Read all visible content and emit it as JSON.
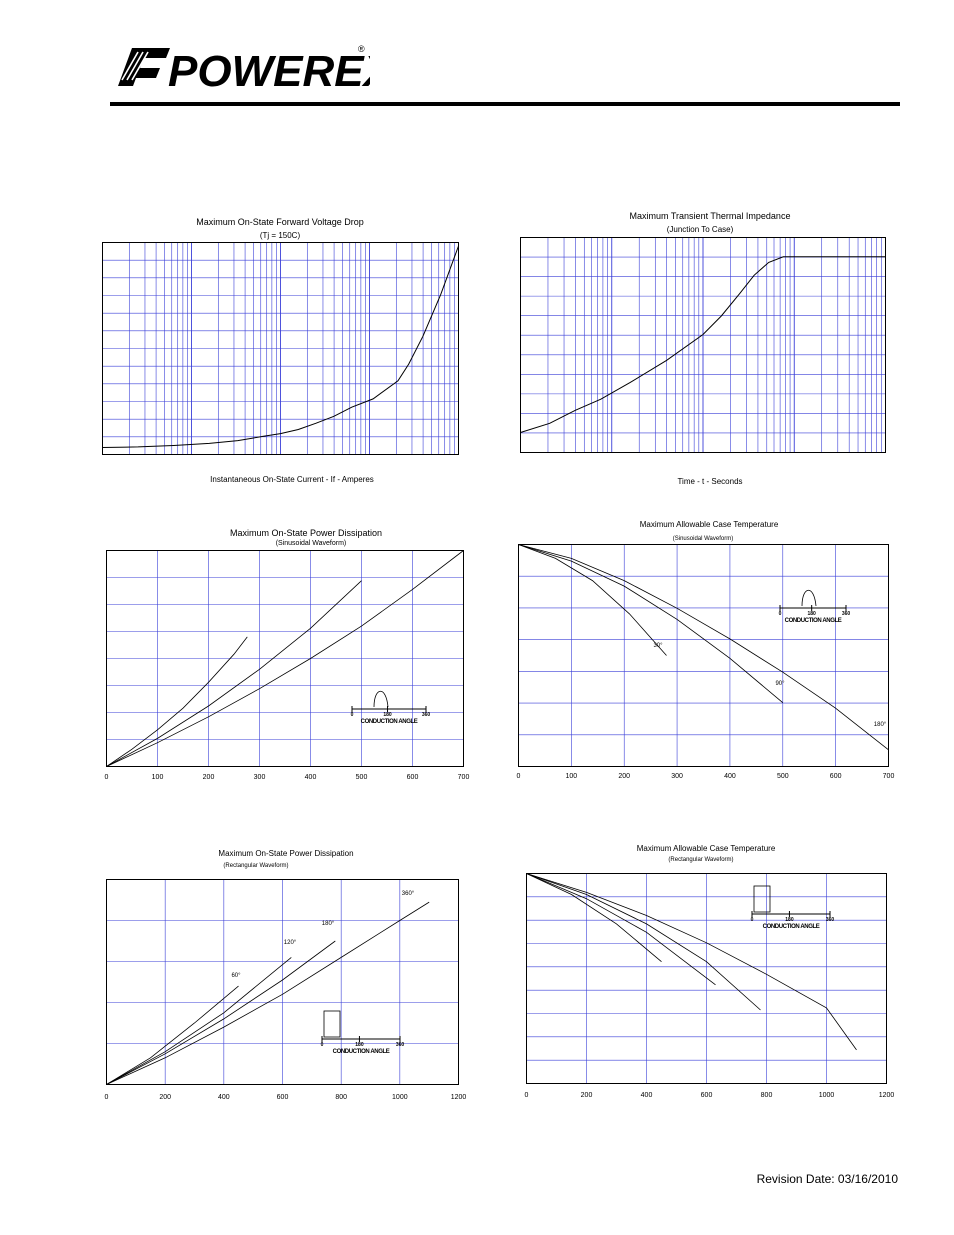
{
  "header": {
    "brand": "POWEREX",
    "trademark": "®"
  },
  "footer": {
    "revision": "Revision Date:  03/16/2010"
  },
  "chart_data": [
    {
      "type": "line",
      "title": "Maximum On-State Forward Voltage Drop",
      "subtitle": "(Tj = 150C)",
      "xlabel": "Instantaneous On-State Current - If - Amperes",
      "xscale": "log",
      "yscale": "linear",
      "grid": true,
      "series": [
        {
          "points": [
            [
              0.0,
              0.1
            ],
            [
              0.1,
              0.11
            ],
            [
              0.2,
              0.13
            ],
            [
              0.3,
              0.16
            ],
            [
              0.38,
              0.2
            ],
            [
              0.45,
              0.26
            ],
            [
              0.5,
              0.3
            ],
            [
              0.55,
              0.36
            ],
            [
              0.6,
              0.45
            ],
            [
              0.65,
              0.55
            ],
            [
              0.7,
              0.68
            ],
            [
              0.76,
              0.8
            ],
            [
              0.83,
              1.06
            ],
            [
              0.86,
              1.3
            ],
            [
              0.9,
              1.7
            ],
            [
              0.95,
              2.3
            ],
            [
              1.0,
              3.0
            ]
          ]
        }
      ]
    },
    {
      "type": "line",
      "title": "Maximum Transient Thermal Impedance",
      "subtitle": "(Junction To Case)",
      "xlabel": "Time - t - Seconds",
      "xscale": "log",
      "yscale": "linear",
      "grid": true,
      "series": [
        {
          "points": [
            [
              0.0,
              0.05
            ],
            [
              0.08,
              0.1
            ],
            [
              0.15,
              0.17
            ],
            [
              0.22,
              0.23
            ],
            [
              0.3,
              0.32
            ],
            [
              0.4,
              0.44
            ],
            [
              0.5,
              0.58
            ],
            [
              0.55,
              0.68
            ],
            [
              0.6,
              0.8
            ],
            [
              0.64,
              0.9
            ],
            [
              0.68,
              0.97
            ],
            [
              0.72,
              1.0
            ],
            [
              1.0,
              1.0
            ]
          ]
        }
      ]
    },
    {
      "type": "line",
      "title": "Maximum On-State Power Dissipation",
      "subtitle": "(Sinusoidal Waveform)",
      "x_ticks": [
        "0",
        "100",
        "200",
        "300",
        "400",
        "500",
        "600",
        "700"
      ],
      "xlim": [
        0,
        700
      ],
      "ylim": [
        0,
        100
      ],
      "grid": true,
      "inset": {
        "label": "CONDUCTION ANGLE",
        "ticks": [
          "0",
          "180",
          "360"
        ]
      },
      "series": [
        {
          "x": [
            0,
            50,
            100,
            150,
            200,
            250,
            276
          ],
          "y": [
            0,
            8,
            17,
            27,
            39,
            52,
            60
          ]
        },
        {
          "x": [
            0,
            100,
            200,
            300,
            400,
            500
          ],
          "y": [
            0,
            13,
            28,
            45,
            64,
            86
          ]
        },
        {
          "x": [
            0,
            100,
            200,
            300,
            400,
            500,
            600,
            700
          ],
          "y": [
            0,
            11,
            23,
            36,
            50,
            65,
            82,
            100
          ]
        }
      ]
    },
    {
      "type": "line",
      "title": "Maximum Allowable Case Temperature",
      "subtitle": "(Sinusoidal Waveform)",
      "x_ticks": [
        "0",
        "100",
        "200",
        "300",
        "400",
        "500",
        "600",
        "700"
      ],
      "xlim": [
        0,
        700
      ],
      "ylim": [
        0,
        100
      ],
      "grid": true,
      "inset": {
        "label": "CONDUCTION ANGLE",
        "ticks": [
          "0",
          "180",
          "360"
        ]
      },
      "series": [
        {
          "name": "30°",
          "x": [
            0,
            70,
            140,
            210,
            280
          ],
          "y": [
            100,
            95,
            87,
            75,
            60
          ]
        },
        {
          "name": "90°",
          "x": [
            0,
            100,
            200,
            300,
            400,
            500
          ],
          "y": [
            100,
            94,
            85,
            73,
            59,
            43
          ]
        },
        {
          "name": "180°",
          "x": [
            0,
            100,
            200,
            300,
            400,
            500,
            600,
            700
          ],
          "y": [
            100,
            95,
            87,
            77,
            66,
            54,
            41,
            26
          ]
        }
      ]
    },
    {
      "type": "line",
      "title": "Maximum On-State Power Dissipation",
      "subtitle": "(Rectangular Waveform)",
      "x_ticks": [
        "0",
        "200",
        "400",
        "600",
        "800",
        "1000",
        "1200"
      ],
      "xlim": [
        0,
        1200
      ],
      "ylim": [
        0,
        100
      ],
      "grid": true,
      "inset": {
        "label": "CONDUCTION ANGLE",
        "ticks": [
          "0",
          "180",
          "360"
        ]
      },
      "series": [
        {
          "name": "60°",
          "x": [
            0,
            150,
            300,
            450
          ],
          "y": [
            0,
            13,
            30,
            48
          ]
        },
        {
          "name": "120°",
          "x": [
            0,
            200,
            400,
            630
          ],
          "y": [
            0,
            16,
            35,
            62
          ]
        },
        {
          "name": "180°",
          "x": [
            0,
            200,
            400,
            600,
            780
          ],
          "y": [
            0,
            15,
            32,
            51,
            70
          ]
        },
        {
          "name": "360°",
          "x": [
            0,
            200,
            400,
            600,
            800,
            1000,
            1100
          ],
          "y": [
            0,
            13,
            28,
            44,
            62,
            80,
            89
          ]
        }
      ]
    },
    {
      "type": "line",
      "title": "Maximum Allowable Case Temperature",
      "subtitle": "(Rectangular Waveform)",
      "x_ticks": [
        "0",
        "200",
        "400",
        "600",
        "800",
        "1000",
        "1200"
      ],
      "xlim": [
        0,
        1200
      ],
      "ylim": [
        0,
        100
      ],
      "grid": true,
      "inset": {
        "label": "CONDUCTION ANGLE",
        "ticks": [
          "0",
          "180",
          "360"
        ]
      },
      "series": [
        {
          "x": [
            0,
            150,
            300,
            450
          ],
          "y": [
            100,
            90,
            76,
            58
          ]
        },
        {
          "x": [
            0,
            200,
            400,
            630
          ],
          "y": [
            100,
            88,
            72,
            47
          ]
        },
        {
          "x": [
            0,
            200,
            400,
            600,
            780
          ],
          "y": [
            100,
            90,
            76,
            58,
            35
          ]
        },
        {
          "x": [
            0,
            200,
            400,
            600,
            800,
            1000,
            1100
          ],
          "y": [
            100,
            91,
            80,
            67,
            52,
            36,
            16
          ]
        }
      ]
    }
  ]
}
